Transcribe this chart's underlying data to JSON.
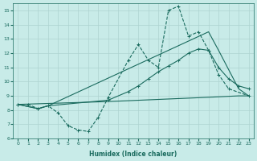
{
  "xlabel": "Humidex (Indice chaleur)",
  "xlim": [
    -0.5,
    23.5
  ],
  "ylim": [
    6,
    15.5
  ],
  "yticks": [
    6,
    7,
    8,
    9,
    10,
    11,
    12,
    13,
    14,
    15
  ],
  "xticks": [
    0,
    1,
    2,
    3,
    4,
    5,
    6,
    7,
    8,
    9,
    10,
    11,
    12,
    13,
    14,
    15,
    16,
    17,
    18,
    19,
    20,
    21,
    22,
    23
  ],
  "background_color": "#c8ebe8",
  "grid_color": "#aed4d0",
  "line_color": "#1a6b5e",
  "line1_x": [
    0,
    1,
    2,
    3,
    4,
    5,
    6,
    7,
    8,
    9,
    11,
    12,
    13,
    14,
    15,
    16,
    17,
    18,
    19,
    20,
    21,
    23
  ],
  "line1_y": [
    8.4,
    8.4,
    8.1,
    8.3,
    7.8,
    6.9,
    6.6,
    6.5,
    7.5,
    8.9,
    11.5,
    12.6,
    11.5,
    11.0,
    15.0,
    15.3,
    13.2,
    13.5,
    12.2,
    10.5,
    9.5,
    9.0
  ],
  "line2_x": [
    0,
    2,
    3,
    9,
    11,
    12,
    13,
    14,
    15,
    16,
    17,
    18,
    19,
    20,
    21,
    22,
    23
  ],
  "line2_y": [
    8.4,
    8.1,
    8.3,
    8.7,
    9.3,
    9.7,
    10.2,
    10.7,
    11.1,
    11.5,
    12.0,
    12.3,
    12.2,
    11.0,
    10.2,
    9.7,
    9.5
  ],
  "line3_x": [
    0,
    2,
    3,
    19,
    20,
    22,
    23
  ],
  "line3_y": [
    8.4,
    8.1,
    8.3,
    13.5,
    12.2,
    9.5,
    9.0
  ],
  "line4_x": [
    0,
    9,
    19,
    22,
    23
  ],
  "line4_y": [
    8.4,
    8.6,
    8.9,
    9.0,
    9.0
  ]
}
